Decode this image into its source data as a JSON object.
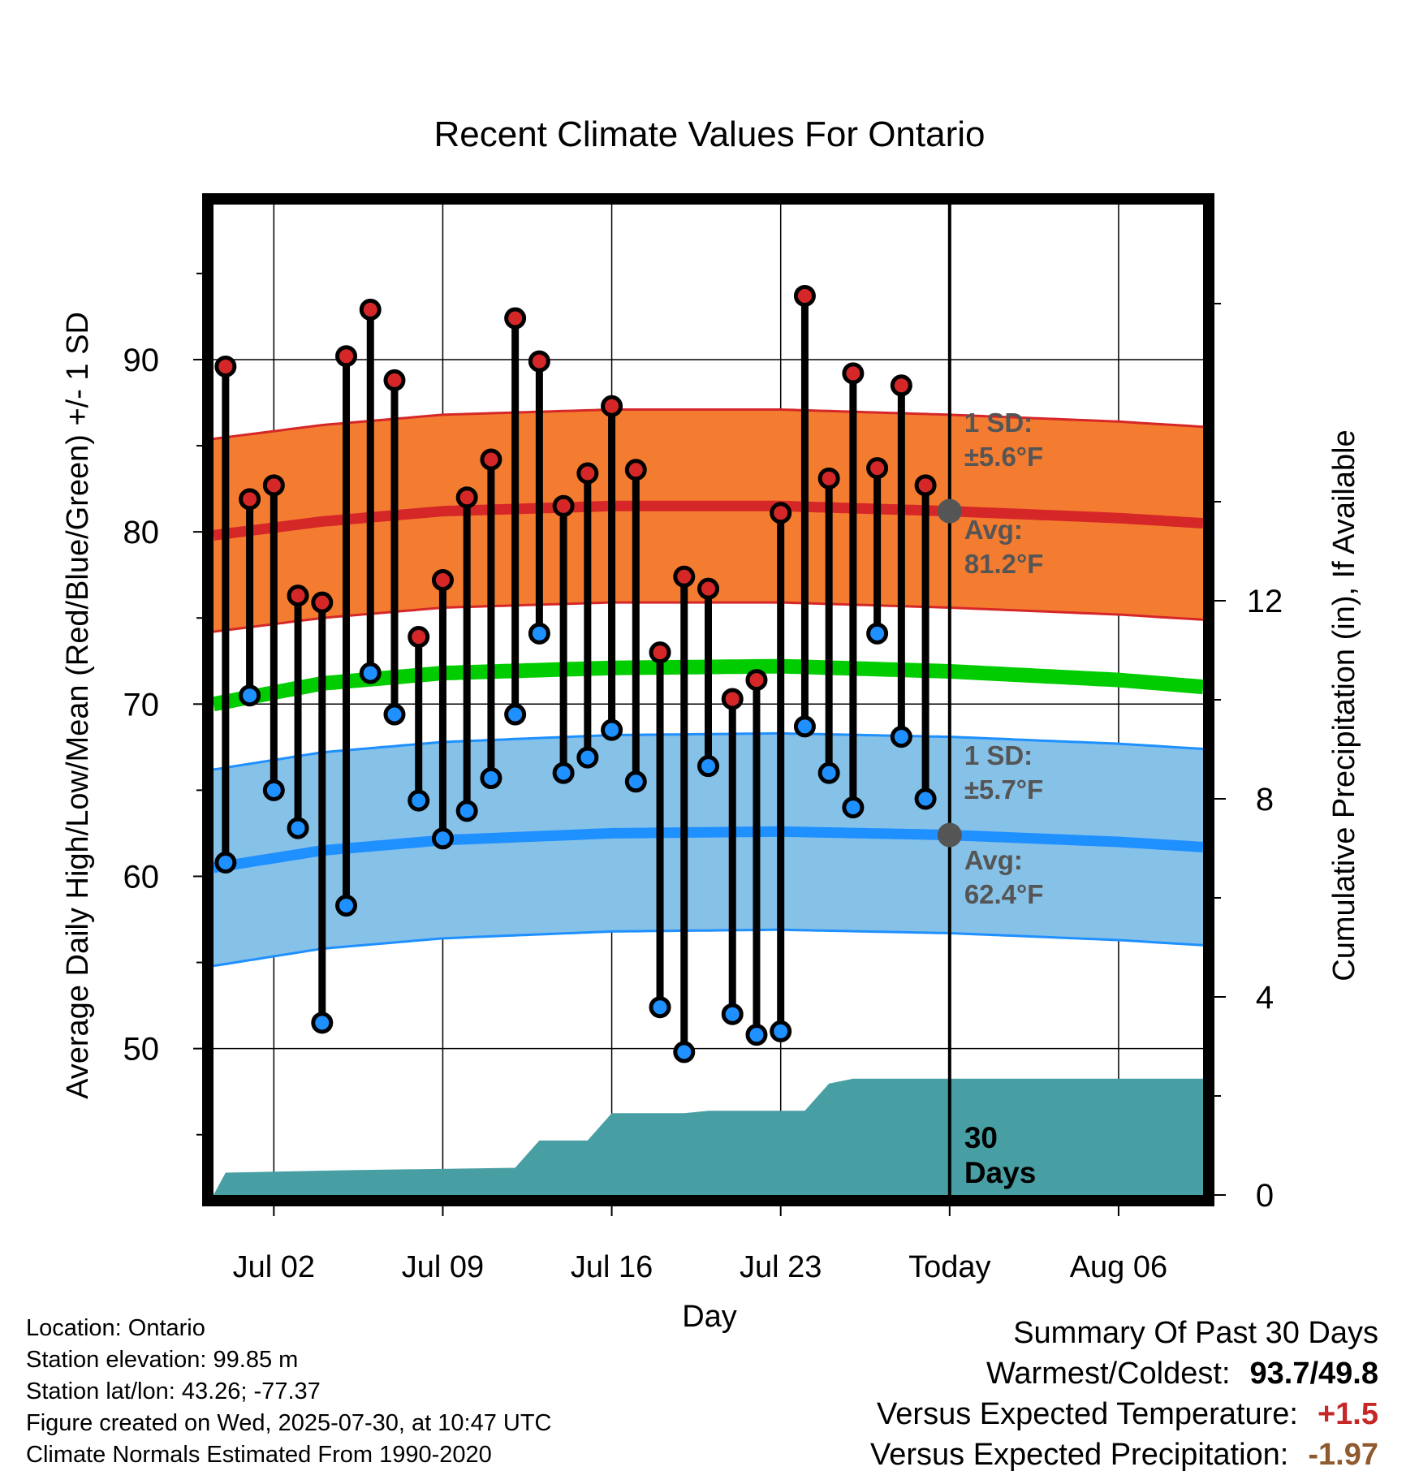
{
  "chart_data": {
    "type": "line",
    "title": "Recent Climate Values For Ontario",
    "xlabel": "Day",
    "ylabel": "Average Daily High/Low/Mean (Red/Blue/Green) +/- 1 SD",
    "y2label": "Cumulative Precipitation (in), If Available",
    "xlim": [
      -2.5,
      38.5
    ],
    "ylim": [
      41.5,
      99
    ],
    "y2lim": [
      0,
      20
    ],
    "x_ticks": [
      {
        "day": 0,
        "label": "Jul 02"
      },
      {
        "day": 7,
        "label": "Jul 09"
      },
      {
        "day": 14,
        "label": "Jul 16"
      },
      {
        "day": 21,
        "label": "Jul 23"
      },
      {
        "day": 28,
        "label": "Today"
      },
      {
        "day": 35,
        "label": "Aug 06"
      }
    ],
    "y_ticks": [
      50,
      60,
      70,
      80,
      90
    ],
    "y2_ticks": [
      0,
      4,
      8,
      12
    ],
    "grid": true,
    "series": [
      {
        "name": "High",
        "color": "#d62728",
        "x": [
          -2,
          -1,
          0,
          1,
          2,
          3,
          4,
          5,
          6,
          7,
          8,
          9,
          10,
          11,
          12,
          13,
          14,
          15,
          16,
          17,
          18,
          19,
          20,
          21,
          22,
          23,
          24,
          25,
          26,
          27
        ],
        "values": [
          89.6,
          81.9,
          82.7,
          76.3,
          75.9,
          90.2,
          92.9,
          88.8,
          73.9,
          77.2,
          82.0,
          84.2,
          92.4,
          89.9,
          81.5,
          83.4,
          87.3,
          83.6,
          73.0,
          77.4,
          76.7,
          70.3,
          71.4,
          81.1,
          93.7,
          83.1,
          89.2,
          83.7,
          88.5,
          82.7
        ]
      },
      {
        "name": "Low",
        "color": "#1e90ff",
        "x": [
          -2,
          -1,
          0,
          1,
          2,
          3,
          4,
          5,
          6,
          7,
          8,
          9,
          10,
          11,
          12,
          13,
          14,
          15,
          16,
          17,
          18,
          19,
          20,
          21,
          22,
          23,
          24,
          25,
          26,
          27
        ],
        "values": [
          60.8,
          70.5,
          65.0,
          62.8,
          51.5,
          58.3,
          71.8,
          69.4,
          64.4,
          62.2,
          63.8,
          65.7,
          69.4,
          74.1,
          66.0,
          66.9,
          68.5,
          65.5,
          52.4,
          49.8,
          66.4,
          52.0,
          50.8,
          51.0,
          68.7,
          66.0,
          64.0,
          74.1,
          68.1,
          64.5
        ]
      }
    ],
    "normals": {
      "day": [
        -2.5,
        2,
        7,
        14,
        21,
        28,
        35,
        38.5
      ],
      "high_avg": [
        79.8,
        80.6,
        81.2,
        81.5,
        81.5,
        81.2,
        80.8,
        80.5
      ],
      "high_sd": 5.6,
      "low_avg": [
        60.5,
        61.5,
        62.1,
        62.5,
        62.6,
        62.4,
        62.0,
        61.7
      ],
      "low_sd": 5.7,
      "mean_avg": [
        70.0,
        71.2,
        71.8,
        72.1,
        72.2,
        71.9,
        71.4,
        71.0
      ]
    },
    "precip": {
      "x": [
        -2.5,
        -2,
        3,
        10,
        11,
        13,
        14,
        17,
        18,
        20,
        22,
        23,
        24,
        38.5
      ],
      "values": [
        0,
        0.45,
        0.5,
        0.55,
        1.1,
        1.1,
        1.65,
        1.65,
        1.7,
        1.7,
        1.7,
        2.25,
        2.35,
        2.35
      ]
    },
    "annotations": [
      {
        "id": "hi_sd_1",
        "text": "1 SD:"
      },
      {
        "id": "hi_sd_2",
        "text": "±5.6°F"
      },
      {
        "id": "hi_avg_1",
        "text": "Avg:"
      },
      {
        "id": "hi_avg_2",
        "text": "81.2°F"
      },
      {
        "id": "lo_sd_1",
        "text": "1 SD:"
      },
      {
        "id": "lo_sd_2",
        "text": "±5.7°F"
      },
      {
        "id": "lo_avg_1",
        "text": "Avg:"
      },
      {
        "id": "lo_avg_2",
        "text": "62.4°F"
      },
      {
        "id": "days_1",
        "text": "30"
      },
      {
        "id": "days_2",
        "text": "Days"
      }
    ],
    "today_day": 28,
    "colors": {
      "high_band": "#f47c30",
      "high_avg": "#d62728",
      "low_band": "#86c1e8",
      "low_avg": "#1e90ff",
      "mean": "#00cc00",
      "precip": "#479ea3"
    }
  },
  "footer": {
    "location": "Location: Ontario",
    "elevation": "Station elevation: 99.85 m",
    "latlon": "Station lat/lon: 43.26; -77.37",
    "created": "Figure created on Wed, 2025-07-30, at 10:47 UTC",
    "normals": "Climate Normals Estimated From 1990-2020"
  },
  "summary": {
    "heading": "Summary Of Past 30 Days",
    "warmest_label": "Warmest/Coldest:",
    "warmest_value": "93.7/49.8",
    "temp_label": "Versus Expected Temperature:",
    "temp_value": "+1.5",
    "precip_label": "Versus Expected Precipitation:",
    "precip_value": "-1.97"
  }
}
